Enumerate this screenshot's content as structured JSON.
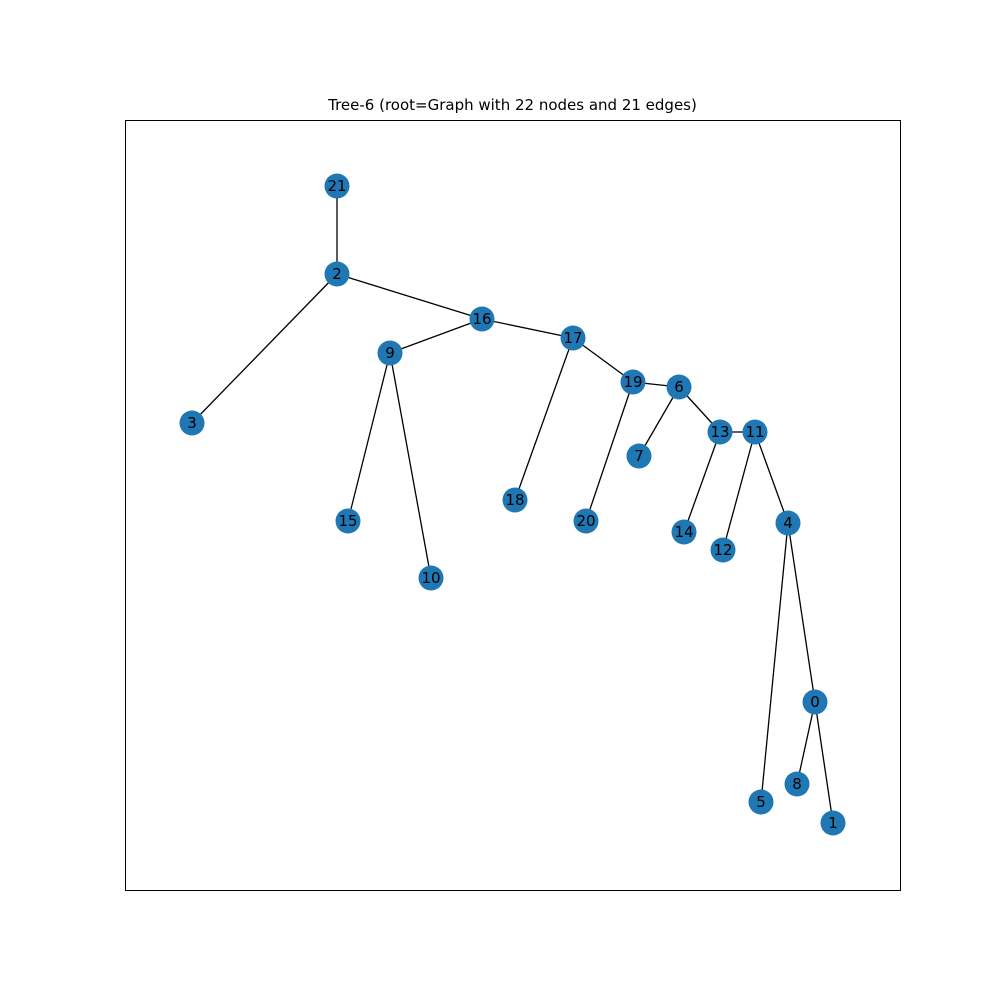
{
  "title": "Tree-6 (root=Graph with 22 nodes and 21 edges)",
  "colors": {
    "node": "#1f77b4",
    "edge": "#000000",
    "label": "#000000",
    "frame": "#000000"
  },
  "graph": {
    "nodes": [
      {
        "id": "0",
        "label": "0"
      },
      {
        "id": "1",
        "label": "1"
      },
      {
        "id": "2",
        "label": "2"
      },
      {
        "id": "3",
        "label": "3"
      },
      {
        "id": "4",
        "label": "4"
      },
      {
        "id": "5",
        "label": "5"
      },
      {
        "id": "6",
        "label": "6"
      },
      {
        "id": "7",
        "label": "7"
      },
      {
        "id": "8",
        "label": "8"
      },
      {
        "id": "9",
        "label": "9"
      },
      {
        "id": "10",
        "label": "10"
      },
      {
        "id": "11",
        "label": "11"
      },
      {
        "id": "12",
        "label": "12"
      },
      {
        "id": "13",
        "label": "13"
      },
      {
        "id": "14",
        "label": "14"
      },
      {
        "id": "15",
        "label": "15"
      },
      {
        "id": "16",
        "label": "16"
      },
      {
        "id": "17",
        "label": "17"
      },
      {
        "id": "18",
        "label": "18"
      },
      {
        "id": "19",
        "label": "19"
      },
      {
        "id": "20",
        "label": "20"
      },
      {
        "id": "21",
        "label": "21"
      }
    ],
    "edges": [
      [
        "21",
        "2"
      ],
      [
        "2",
        "3"
      ],
      [
        "2",
        "16"
      ],
      [
        "16",
        "9"
      ],
      [
        "16",
        "17"
      ],
      [
        "9",
        "15"
      ],
      [
        "9",
        "10"
      ],
      [
        "17",
        "18"
      ],
      [
        "17",
        "19"
      ],
      [
        "19",
        "20"
      ],
      [
        "19",
        "6"
      ],
      [
        "6",
        "7"
      ],
      [
        "6",
        "13"
      ],
      [
        "13",
        "14"
      ],
      [
        "13",
        "11"
      ],
      [
        "11",
        "12"
      ],
      [
        "11",
        "4"
      ],
      [
        "4",
        "5"
      ],
      [
        "4",
        "0"
      ],
      [
        "0",
        "8"
      ],
      [
        "0",
        "1"
      ]
    ]
  }
}
